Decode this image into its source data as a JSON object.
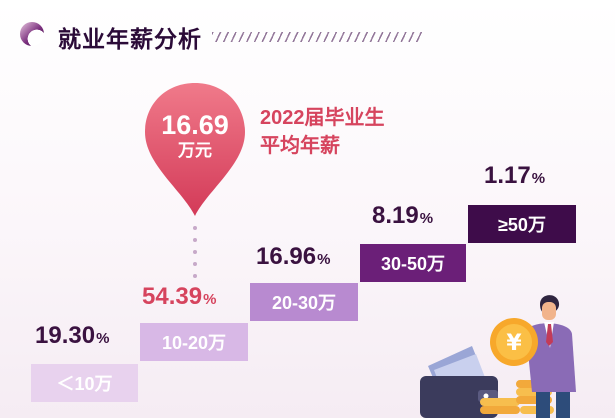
{
  "header": {
    "title": "就业年薪分析",
    "icon": "gradient-circle-icon"
  },
  "average": {
    "value": "16.69",
    "unit": "万元",
    "label_line1": "2022届毕业生",
    "label_line2": "平均年薪",
    "icon": "map-pin-icon"
  },
  "chart_data": {
    "type": "bar",
    "categories": [
      "<10万",
      "10-20万",
      "20-30万",
      "30-50万",
      "≥50万"
    ],
    "category_labels": [
      "＜10万",
      "10-20万",
      "20-30万",
      "30-50万",
      "≥50万"
    ],
    "values": [
      19.3,
      54.39,
      16.96,
      8.19,
      1.17
    ],
    "value_labels": [
      "19.30",
      "54.39",
      "16.96",
      "8.19",
      "1.17"
    ],
    "percent_sign": "%",
    "highlight_index": 1,
    "colors": [
      "#e8d2ee",
      "#d8b8e6",
      "#b88ad0",
      "#6b1f78",
      "#3e0c4a"
    ],
    "label_colors": [
      "#ffffff",
      "#ffffff",
      "#ffffff",
      "#ffffff",
      "#ffffff"
    ],
    "value_color": "#3a1240",
    "highlight_color": "#d6445e"
  },
  "illustration": {
    "icons": [
      "businessman-icon",
      "yuan-coin-icon",
      "coin-stack-icon",
      "wallet-icon"
    ],
    "coin_symbol": "¥"
  }
}
